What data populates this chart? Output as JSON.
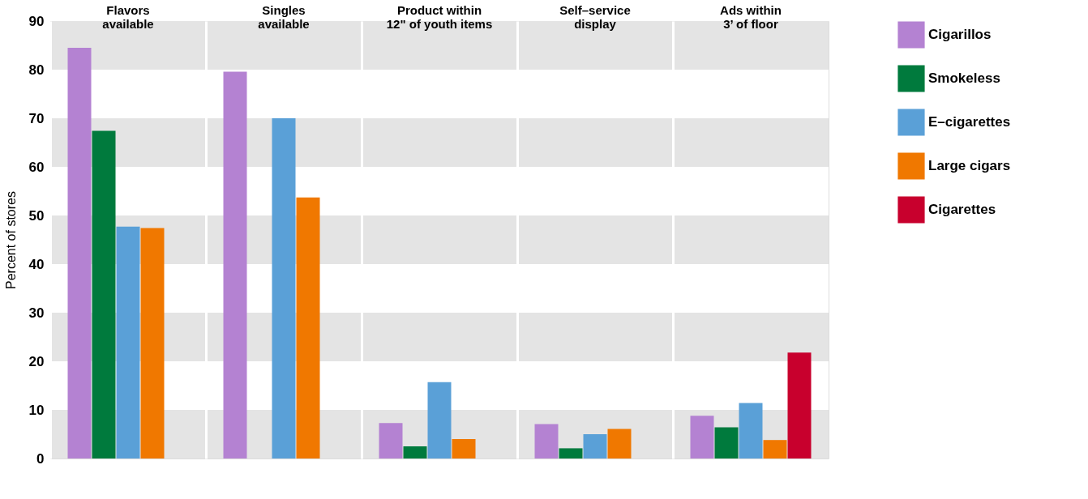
{
  "chart_data": {
    "type": "bar",
    "ylabel": "Percent of stores",
    "categories": [
      "Flavors\navailable",
      "Singles\navailable",
      "Product within\n12\" of youth items",
      "Self–service\ndisplay",
      "Ads within\n3’ of floor"
    ],
    "series": [
      {
        "name": "Cigarillos",
        "color": "#b482d2",
        "values": [
          84.5,
          79.6,
          7.3,
          7.1,
          8.8
        ]
      },
      {
        "name": "Smokeless",
        "color": "#007a3d",
        "values": [
          67.4,
          null,
          2.5,
          2.1,
          6.4
        ]
      },
      {
        "name": "E–cigarettes",
        "color": "#5aa0d7",
        "values": [
          47.7,
          70.0,
          15.7,
          5.0,
          11.4
        ]
      },
      {
        "name": "Large cigars",
        "color": "#f07800",
        "values": [
          47.4,
          53.7,
          4.0,
          6.1,
          3.8
        ]
      },
      {
        "name": "Cigarettes",
        "color": "#c8002d",
        "values": [
          null,
          null,
          null,
          null,
          21.8
        ]
      }
    ],
    "ylim": [
      0,
      90
    ],
    "yticks": [
      0,
      10,
      20,
      30,
      40,
      50,
      60,
      70,
      80,
      90
    ],
    "bands": [
      {
        "axis": "y",
        "from": 0,
        "to": 10,
        "color": "#e4e4e4"
      },
      {
        "axis": "y",
        "from": 20,
        "to": 30,
        "color": "#e4e4e4"
      },
      {
        "axis": "y",
        "from": 40,
        "to": 50,
        "color": "#e4e4e4"
      },
      {
        "axis": "y",
        "from": 60,
        "to": 70,
        "color": "#e4e4e4"
      },
      {
        "axis": "y",
        "from": 80,
        "to": 90,
        "color": "#e4e4e4"
      }
    ],
    "grid": "x",
    "legend": "right"
  }
}
